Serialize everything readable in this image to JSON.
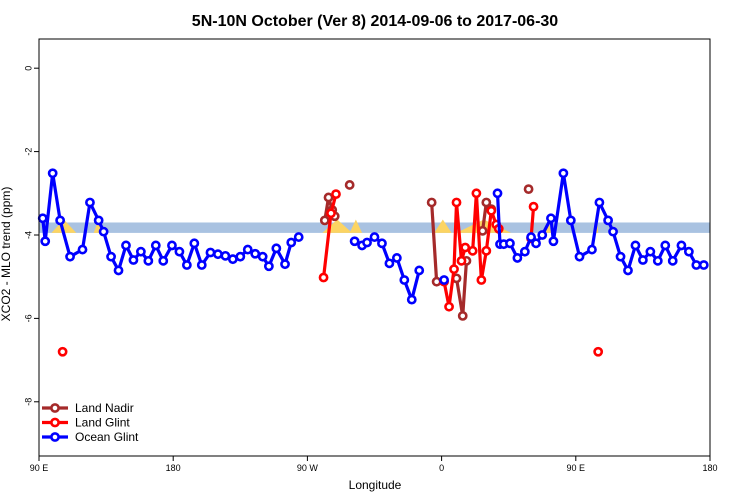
{
  "chart_data": {
    "type": "line",
    "title": "5N-10N October (Ver 8)   2014-09-06 to 2017-06-30",
    "xlabel": "Longitude",
    "ylabel": "XCO2 - MLO trend (ppm)",
    "xlim": [
      -90,
      180
    ],
    "ylim": [
      -9.3,
      0.7
    ],
    "x_ticks": [
      {
        "value": -90,
        "label": "90 E"
      },
      {
        "value": -36,
        "label": "180"
      },
      {
        "value": 18,
        "label": "90 W"
      },
      {
        "value": 72,
        "label": "0"
      },
      {
        "value": 126,
        "label": "90 E"
      },
      {
        "value": 180,
        "label": "180"
      }
    ],
    "y_ticks": [
      0,
      -2,
      -4,
      -6,
      -8
    ],
    "grid": false,
    "legend_position": "bottom-left",
    "band": {
      "y_low": -3.95,
      "y_high": -3.7,
      "color": "#a9c2e1"
    },
    "land_markers": {
      "color": "#fcd462",
      "segments": [
        [
          -85,
          -75
        ],
        [
          -68,
          -64
        ],
        [
          24,
          36
        ],
        [
          35,
          40
        ],
        [
          69,
          76
        ],
        [
          78,
          100
        ],
        [
          114,
          116
        ],
        [
          134,
          135
        ]
      ]
    },
    "series": [
      {
        "name": "Land Nadir",
        "color": "#a52a2a",
        "segments": [
          [
            [
              25,
              -3.65
            ],
            [
              26.5,
              -3.1
            ],
            [
              28,
              -3.4
            ],
            [
              29,
              -3.55
            ]
          ],
          [
            [
              35,
              -2.8
            ]
          ],
          [
            [
              68,
              -3.22
            ],
            [
              70,
              -5.12
            ]
          ],
          [
            [
              78,
              -5.04
            ],
            [
              80.5,
              -5.94
            ],
            [
              82,
              -4.62
            ]
          ],
          [
            [
              88.5,
              -3.9
            ],
            [
              90,
              -3.22
            ],
            [
              92,
              -3.38
            ]
          ],
          [
            [
              107,
              -2.9
            ]
          ]
        ]
      },
      {
        "name": "Land Glint",
        "color": "#ff0000",
        "segments": [
          [
            [
              -80.5,
              -6.8
            ]
          ],
          [
            [
              24.5,
              -5.02
            ],
            [
              27.5,
              -3.48
            ],
            [
              29.5,
              -3.02
            ]
          ],
          [
            [
              73,
              -5.12
            ],
            [
              75,
              -5.72
            ],
            [
              77,
              -4.82
            ],
            [
              78,
              -3.22
            ],
            [
              80,
              -4.62
            ],
            [
              81.5,
              -4.3
            ],
            [
              84.5,
              -4.38
            ],
            [
              86,
              -3.0
            ],
            [
              88,
              -5.08
            ],
            [
              90,
              -4.38
            ],
            [
              92,
              -3.42
            ],
            [
              94,
              -3.75
            ],
            [
              95,
              -3.85
            ]
          ],
          [
            [
              108,
              -4.08
            ],
            [
              109,
              -3.32
            ]
          ],
          [
            [
              135,
              -6.8
            ]
          ]
        ]
      },
      {
        "name": "Ocean Glint",
        "color": "#0000ff",
        "segments": [
          [
            [
              -88.5,
              -3.6
            ],
            [
              -87.5,
              -4.15
            ],
            [
              -84.5,
              -2.52
            ],
            [
              -81.5,
              -3.65
            ],
            [
              -77.5,
              -4.52
            ],
            [
              -72.5,
              -4.35
            ],
            [
              -69.5,
              -3.22
            ],
            [
              -66,
              -3.65
            ],
            [
              -64,
              -3.92
            ],
            [
              -61,
              -4.52
            ],
            [
              -58,
              -4.85
            ],
            [
              -55,
              -4.25
            ],
            [
              -52,
              -4.6
            ],
            [
              -49,
              -4.4
            ],
            [
              -46,
              -4.62
            ],
            [
              -43,
              -4.25
            ],
            [
              -40,
              -4.62
            ],
            [
              -36.5,
              -4.25
            ],
            [
              -33.5,
              -4.4
            ],
            [
              -30.5,
              -4.72
            ],
            [
              -27.5,
              -4.2
            ],
            [
              -24.5,
              -4.72
            ],
            [
              -21,
              -4.42
            ],
            [
              -18,
              -4.46
            ],
            [
              -15,
              -4.5
            ],
            [
              -12,
              -4.58
            ],
            [
              -9,
              -4.52
            ],
            [
              -6,
              -4.35
            ],
            [
              -3,
              -4.45
            ],
            [
              0,
              -4.52
            ],
            [
              2.5,
              -4.75
            ],
            [
              5.5,
              -4.32
            ],
            [
              9,
              -4.7
            ],
            [
              11.5,
              -4.18
            ],
            [
              14.5,
              -4.05
            ]
          ],
          [
            [
              37,
              -4.15
            ],
            [
              40,
              -4.25
            ],
            [
              42,
              -4.18
            ],
            [
              45,
              -4.05
            ],
            [
              48,
              -4.2
            ],
            [
              51,
              -4.68
            ],
            [
              54,
              -4.55
            ],
            [
              57,
              -5.08
            ],
            [
              60,
              -5.55
            ],
            [
              63,
              -4.85
            ]
          ],
          [
            [
              73,
              -5.08
            ]
          ],
          [
            [
              94.5,
              -3.0
            ],
            [
              95.5,
              -4.22
            ],
            [
              97,
              -4.22
            ],
            [
              99.5,
              -4.2
            ],
            [
              102.5,
              -4.55
            ],
            [
              105.5,
              -4.4
            ],
            [
              108,
              -4.05
            ],
            [
              110,
              -4.2
            ],
            [
              112.5,
              -4.0
            ],
            [
              116,
              -3.6
            ],
            [
              117,
              -4.15
            ],
            [
              121,
              -2.52
            ],
            [
              124,
              -3.65
            ],
            [
              127.5,
              -4.52
            ],
            [
              132.5,
              -4.35
            ],
            [
              135.5,
              -3.22
            ],
            [
              139,
              -3.65
            ],
            [
              141,
              -3.92
            ],
            [
              144,
              -4.52
            ],
            [
              147,
              -4.85
            ],
            [
              150,
              -4.25
            ],
            [
              153,
              -4.6
            ],
            [
              156,
              -4.4
            ],
            [
              159,
              -4.62
            ],
            [
              162,
              -4.25
            ],
            [
              165,
              -4.62
            ],
            [
              168.5,
              -4.25
            ],
            [
              171.5,
              -4.4
            ],
            [
              174.5,
              -4.72
            ],
            [
              177.5,
              -4.72
            ]
          ]
        ]
      }
    ]
  }
}
